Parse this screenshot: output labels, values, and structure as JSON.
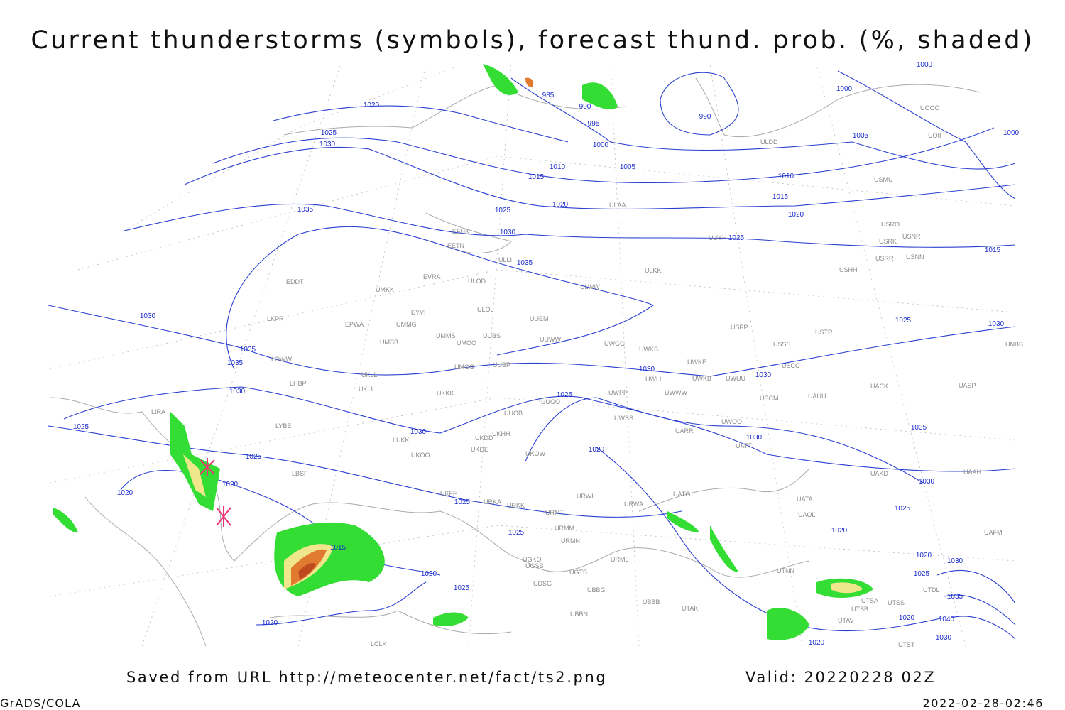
{
  "title": "Current thunderstorms (symbols), forecast thund. prob. (%, shaded)",
  "footer": {
    "saved": "Saved from URL http://meteocenter.net/fact/ts2.png",
    "valid": "Valid: 20220228 02Z",
    "software": "GrADS/COLA",
    "timestamp": "2022-02-28-02:46"
  },
  "isobar_labels": [
    1020,
    1025,
    1030,
    985,
    990,
    995,
    990,
    1000,
    1000,
    1005,
    1005,
    1010,
    1015,
    1010,
    1015,
    1020,
    1025,
    1020,
    1030,
    1025,
    1015,
    1035,
    1035,
    1030,
    1025,
    1030,
    1035,
    1035,
    1030,
    1030,
    1030,
    1025,
    1025,
    1030,
    1035,
    1030,
    1020,
    1025,
    1020,
    1020,
    1030,
    1025,
    1025,
    1025,
    1020,
    1015,
    1020,
    1030,
    1025,
    1020,
    1025,
    1035,
    1020,
    1040,
    1030,
    1020,
    1020,
    1000,
    1000
  ],
  "stations": [
    "EFHK",
    "EETN",
    "ULLI",
    "EVRA",
    "ULOD",
    "ULWW",
    "EDDT",
    "UMKK",
    "EYVI",
    "ULOL",
    "UUEM",
    "LKPR",
    "EPWA",
    "UMMG",
    "UMMS",
    "UUBS",
    "UUWW",
    "UMOO",
    "UMBB",
    "UWGG",
    "UWKS",
    "USPP",
    "USTR",
    "USSS",
    "UNBB",
    "LOWW",
    "UWKE",
    "UMGG",
    "UUBP",
    "USCC",
    "UKLL",
    "UWLL",
    "UWKB",
    "UWUU",
    "LHBP",
    "UKLI",
    "UKKK",
    "UWPP",
    "UWWW",
    "USCM",
    "UAUU",
    "UACK",
    "UASP",
    "LIRA",
    "UUOO",
    "UUOB",
    "UWSS",
    "LYBE",
    "ULAA",
    "ULDD",
    "ULKK",
    "UUYH",
    "USHH",
    "USRR",
    "USNN",
    "USRK",
    "USRO",
    "USNR",
    "USMU",
    "UOOO",
    "UOII",
    "LUKK",
    "UKOO",
    "UKDD",
    "UKHH",
    "UKDE",
    "UKOW",
    "UARR",
    "UWOO",
    "UATT",
    "UAKD",
    "UAAH",
    "LBSF",
    "UKFF",
    "URKA",
    "URKK",
    "URWI",
    "URWA",
    "UATG",
    "UATA",
    "UAOL",
    "URMT",
    "URMM",
    "URMN",
    "UGKO",
    "UGTB",
    "UBBG",
    "UGSB",
    "UDSG",
    "UBBN",
    "UBBB",
    "UTAK",
    "URML",
    "UTNN",
    "UTSA",
    "UTSB",
    "UTSS",
    "UTAV",
    "UTST",
    "LCLK",
    "UTDL",
    "UAFM"
  ]
}
